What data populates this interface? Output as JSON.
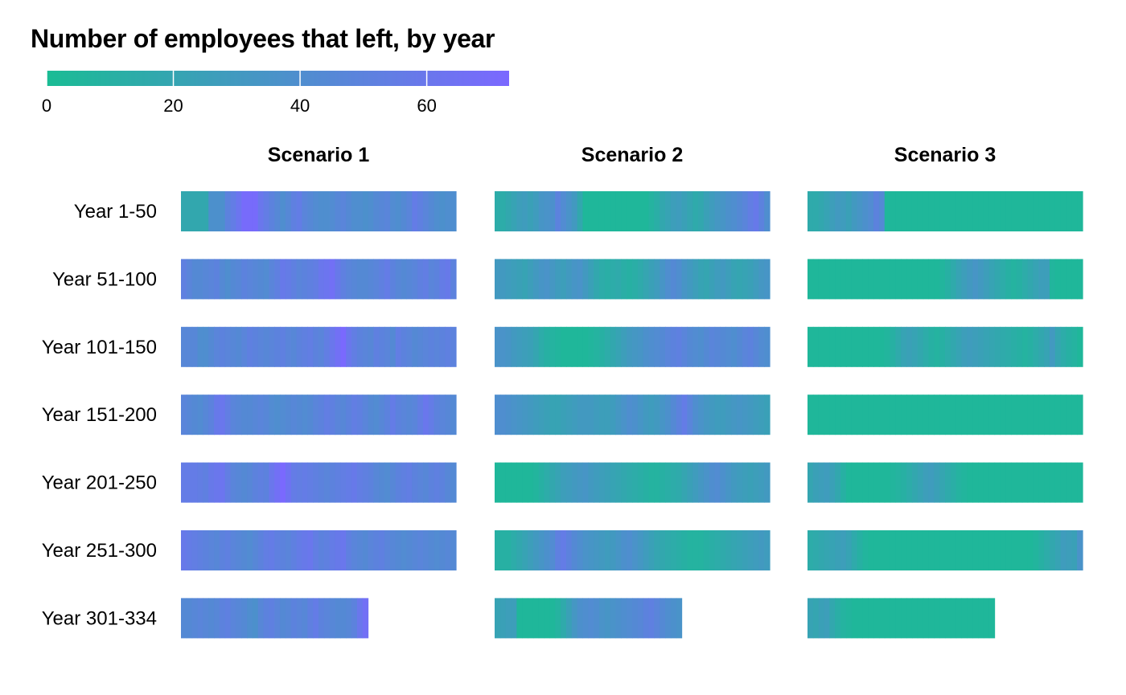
{
  "chart_data": {
    "type": "heatmap",
    "title": "Number of employees that left, by year",
    "legend": {
      "position": "top-left",
      "min_color": "#1abc94",
      "max_color": "#7b68ff",
      "range": [
        0,
        73
      ],
      "ticks": [
        "0",
        "20",
        "40",
        "60"
      ],
      "tick_values": [
        0,
        20,
        40,
        60
      ]
    },
    "facets": [
      "Scenario 1",
      "Scenario 2",
      "Scenario 3"
    ],
    "rows": [
      "Year 1-50",
      "Year 51-100",
      "Year 101-150",
      "Year 151-200",
      "Year 201-250",
      "Year 251-300",
      "Year 301-334"
    ],
    "years_per_row": [
      50,
      50,
      50,
      50,
      50,
      50,
      34
    ],
    "series": [
      {
        "name": "Scenario 1",
        "values": [
          [
            18,
            18,
            18,
            18,
            18,
            38,
            38,
            38,
            50,
            55,
            62,
            70,
            70,
            70,
            60,
            55,
            50,
            45,
            40,
            45,
            52,
            55,
            48,
            45,
            42,
            40,
            40,
            42,
            46,
            48,
            44,
            40,
            40,
            38,
            40,
            44,
            46,
            48,
            42,
            40,
            44,
            48,
            56,
            52,
            48,
            44,
            40,
            38,
            40,
            40
          ],
          [
            52,
            48,
            44,
            44,
            46,
            48,
            50,
            44,
            40,
            44,
            46,
            50,
            48,
            46,
            44,
            42,
            48,
            52,
            58,
            56,
            52,
            48,
            50,
            52,
            54,
            60,
            62,
            66,
            58,
            52,
            48,
            46,
            44,
            44,
            46,
            48,
            52,
            56,
            50,
            46,
            44,
            46,
            48,
            52,
            54,
            48,
            50,
            56,
            58,
            50
          ],
          [
            46,
            46,
            46,
            40,
            40,
            44,
            48,
            50,
            48,
            46,
            44,
            48,
            52,
            50,
            48,
            46,
            48,
            50,
            52,
            48,
            46,
            50,
            52,
            54,
            50,
            48,
            54,
            60,
            66,
            72,
            60,
            54,
            50,
            48,
            46,
            52,
            50,
            48,
            44,
            54,
            50,
            48,
            44,
            46,
            48,
            50,
            48,
            50,
            52,
            50
          ],
          [
            48,
            46,
            44,
            42,
            46,
            50,
            58,
            60,
            54,
            48,
            46,
            44,
            44,
            46,
            48,
            46,
            42,
            40,
            42,
            44,
            46,
            44,
            42,
            44,
            48,
            50,
            54,
            52,
            48,
            46,
            50,
            54,
            52,
            48,
            44,
            42,
            46,
            50,
            56,
            50,
            48,
            46,
            48,
            54,
            60,
            56,
            50,
            48,
            46,
            44
          ],
          [
            56,
            56,
            56,
            54,
            52,
            58,
            60,
            62,
            54,
            48,
            46,
            44,
            46,
            50,
            52,
            50,
            60,
            66,
            72,
            64,
            56,
            54,
            56,
            54,
            52,
            50,
            48,
            50,
            52,
            54,
            56,
            58,
            54,
            52,
            50,
            46,
            44,
            42,
            46,
            50,
            52,
            54,
            50,
            48,
            46,
            50,
            52,
            50,
            46,
            44
          ],
          [
            58,
            56,
            54,
            52,
            50,
            48,
            46,
            50,
            52,
            48,
            46,
            44,
            42,
            46,
            50,
            54,
            56,
            52,
            50,
            48,
            52,
            56,
            58,
            60,
            54,
            50,
            52,
            56,
            58,
            60,
            52,
            48,
            46,
            44,
            48,
            50,
            52,
            48,
            46,
            44,
            42,
            44,
            46,
            48,
            46,
            44,
            42,
            44,
            46,
            44
          ],
          [
            44,
            44,
            46,
            48,
            46,
            44,
            46,
            50,
            52,
            48,
            46,
            44,
            40,
            38,
            46,
            50,
            52,
            48,
            44,
            46,
            50,
            48,
            46,
            52,
            56,
            50,
            48,
            46,
            44,
            44,
            46,
            50,
            60,
            66
          ]
        ]
      },
      {
        "name": "Scenario 2",
        "values": [
          [
            14,
            14,
            18,
            22,
            26,
            28,
            24,
            28,
            34,
            36,
            38,
            50,
            42,
            36,
            30,
            18,
            4,
            4,
            4,
            4,
            4,
            4,
            4,
            4,
            4,
            4,
            4,
            4,
            8,
            12,
            18,
            22,
            26,
            28,
            24,
            20,
            16,
            18,
            24,
            28,
            32,
            34,
            38,
            40,
            44,
            48,
            54,
            58,
            50,
            40
          ],
          [
            30,
            30,
            28,
            26,
            24,
            22,
            26,
            30,
            34,
            36,
            32,
            28,
            26,
            30,
            34,
            36,
            30,
            24,
            18,
            14,
            12,
            14,
            16,
            12,
            10,
            12,
            16,
            20,
            24,
            28,
            34,
            40,
            44,
            40,
            34,
            30,
            26,
            22,
            20,
            24,
            28,
            30,
            26,
            22,
            20,
            22,
            24,
            28,
            32,
            34
          ],
          [
            36,
            36,
            34,
            30,
            28,
            26,
            24,
            20,
            14,
            10,
            8,
            6,
            4,
            4,
            4,
            4,
            4,
            6,
            8,
            10,
            14,
            18,
            22,
            26,
            30,
            32,
            34,
            38,
            40,
            42,
            44,
            48,
            50,
            52,
            48,
            44,
            42,
            40,
            44,
            48,
            46,
            44,
            42,
            40,
            44,
            48,
            50,
            46,
            42,
            40
          ],
          [
            40,
            40,
            38,
            36,
            34,
            32,
            30,
            28,
            26,
            24,
            22,
            22,
            24,
            26,
            28,
            30,
            30,
            30,
            28,
            26,
            26,
            28,
            32,
            36,
            40,
            38,
            34,
            30,
            28,
            30,
            34,
            38,
            44,
            50,
            56,
            48,
            40,
            36,
            32,
            30,
            28,
            28,
            30,
            32,
            34,
            32,
            30,
            28,
            26,
            24
          ],
          [
            4,
            4,
            4,
            4,
            4,
            4,
            4,
            6,
            10,
            14,
            18,
            22,
            26,
            28,
            30,
            32,
            34,
            30,
            28,
            26,
            24,
            22,
            20,
            18,
            16,
            14,
            12,
            10,
            8,
            8,
            10,
            12,
            14,
            16,
            20,
            24,
            28,
            32,
            36,
            40,
            42,
            38,
            34,
            30,
            28,
            26,
            24,
            26,
            28,
            30
          ],
          [
            10,
            10,
            10,
            14,
            18,
            22,
            26,
            30,
            34,
            38,
            42,
            52,
            56,
            50,
            44,
            40,
            36,
            34,
            32,
            30,
            28,
            30,
            34,
            38,
            40,
            36,
            32,
            28,
            24,
            20,
            18,
            16,
            14,
            12,
            10,
            8,
            8,
            8,
            10,
            12,
            14,
            16,
            18,
            20,
            22,
            24,
            26,
            28,
            30,
            28
          ],
          [
            22,
            24,
            26,
            26,
            4,
            4,
            4,
            4,
            4,
            4,
            4,
            8,
            16,
            24,
            32,
            38,
            40,
            42,
            40,
            36,
            34,
            36,
            38,
            40,
            42,
            44,
            46,
            50,
            52,
            48,
            44,
            40,
            38,
            36
          ]
        ]
      },
      {
        "name": "Scenario 3",
        "values": [
          [
            16,
            16,
            18,
            22,
            26,
            30,
            28,
            24,
            30,
            34,
            38,
            42,
            50,
            44,
            4,
            4,
            4,
            4,
            4,
            4,
            4,
            4,
            4,
            4,
            4,
            4,
            4,
            4,
            4,
            4,
            4,
            4,
            4,
            4,
            4,
            4,
            4,
            4,
            4,
            4,
            4,
            4,
            4,
            4,
            4,
            4,
            4,
            4,
            4,
            4
          ],
          [
            4,
            4,
            4,
            4,
            4,
            4,
            4,
            4,
            4,
            4,
            4,
            4,
            4,
            4,
            4,
            4,
            4,
            4,
            4,
            4,
            4,
            4,
            4,
            4,
            6,
            10,
            16,
            22,
            26,
            30,
            34,
            30,
            26,
            22,
            18,
            14,
            10,
            8,
            10,
            14,
            18,
            22,
            26,
            26,
            6,
            4,
            4,
            4,
            4,
            4
          ],
          [
            4,
            4,
            4,
            4,
            4,
            4,
            4,
            4,
            4,
            4,
            4,
            4,
            4,
            4,
            6,
            10,
            16,
            22,
            24,
            22,
            18,
            14,
            10,
            8,
            10,
            14,
            18,
            22,
            26,
            28,
            26,
            24,
            22,
            20,
            18,
            16,
            14,
            12,
            10,
            8,
            10,
            14,
            18,
            22,
            30,
            20,
            14,
            10,
            8,
            4
          ],
          [
            4,
            4,
            4,
            4,
            4,
            4,
            4,
            4,
            4,
            4,
            4,
            4,
            4,
            4,
            4,
            4,
            4,
            4,
            4,
            4,
            4,
            4,
            4,
            4,
            4,
            4,
            4,
            4,
            4,
            4,
            4,
            4,
            4,
            4,
            4,
            4,
            4,
            4,
            4,
            4,
            4,
            4,
            4,
            4,
            4,
            4,
            4,
            4,
            4,
            4
          ],
          [
            20,
            24,
            26,
            28,
            24,
            18,
            10,
            4,
            4,
            4,
            4,
            4,
            4,
            4,
            4,
            6,
            8,
            10,
            14,
            18,
            22,
            26,
            28,
            24,
            20,
            16,
            12,
            8,
            6,
            4,
            4,
            4,
            4,
            4,
            4,
            4,
            4,
            4,
            4,
            4,
            4,
            4,
            4,
            4,
            4,
            4,
            4,
            4,
            4,
            4
          ],
          [
            14,
            16,
            18,
            20,
            22,
            24,
            26,
            22,
            16,
            10,
            6,
            4,
            4,
            4,
            4,
            4,
            4,
            4,
            4,
            4,
            4,
            4,
            4,
            4,
            4,
            4,
            4,
            4,
            4,
            4,
            4,
            4,
            4,
            4,
            4,
            4,
            4,
            4,
            4,
            4,
            4,
            6,
            10,
            14,
            18,
            22,
            28,
            26,
            24,
            36
          ],
          [
            22,
            20,
            24,
            26,
            18,
            12,
            8,
            6,
            4,
            4,
            4,
            4,
            4,
            4,
            4,
            4,
            4,
            4,
            4,
            4,
            4,
            4,
            4,
            4,
            4,
            4,
            4,
            4,
            4,
            4,
            4,
            4,
            4,
            4
          ]
        ]
      }
    ]
  }
}
